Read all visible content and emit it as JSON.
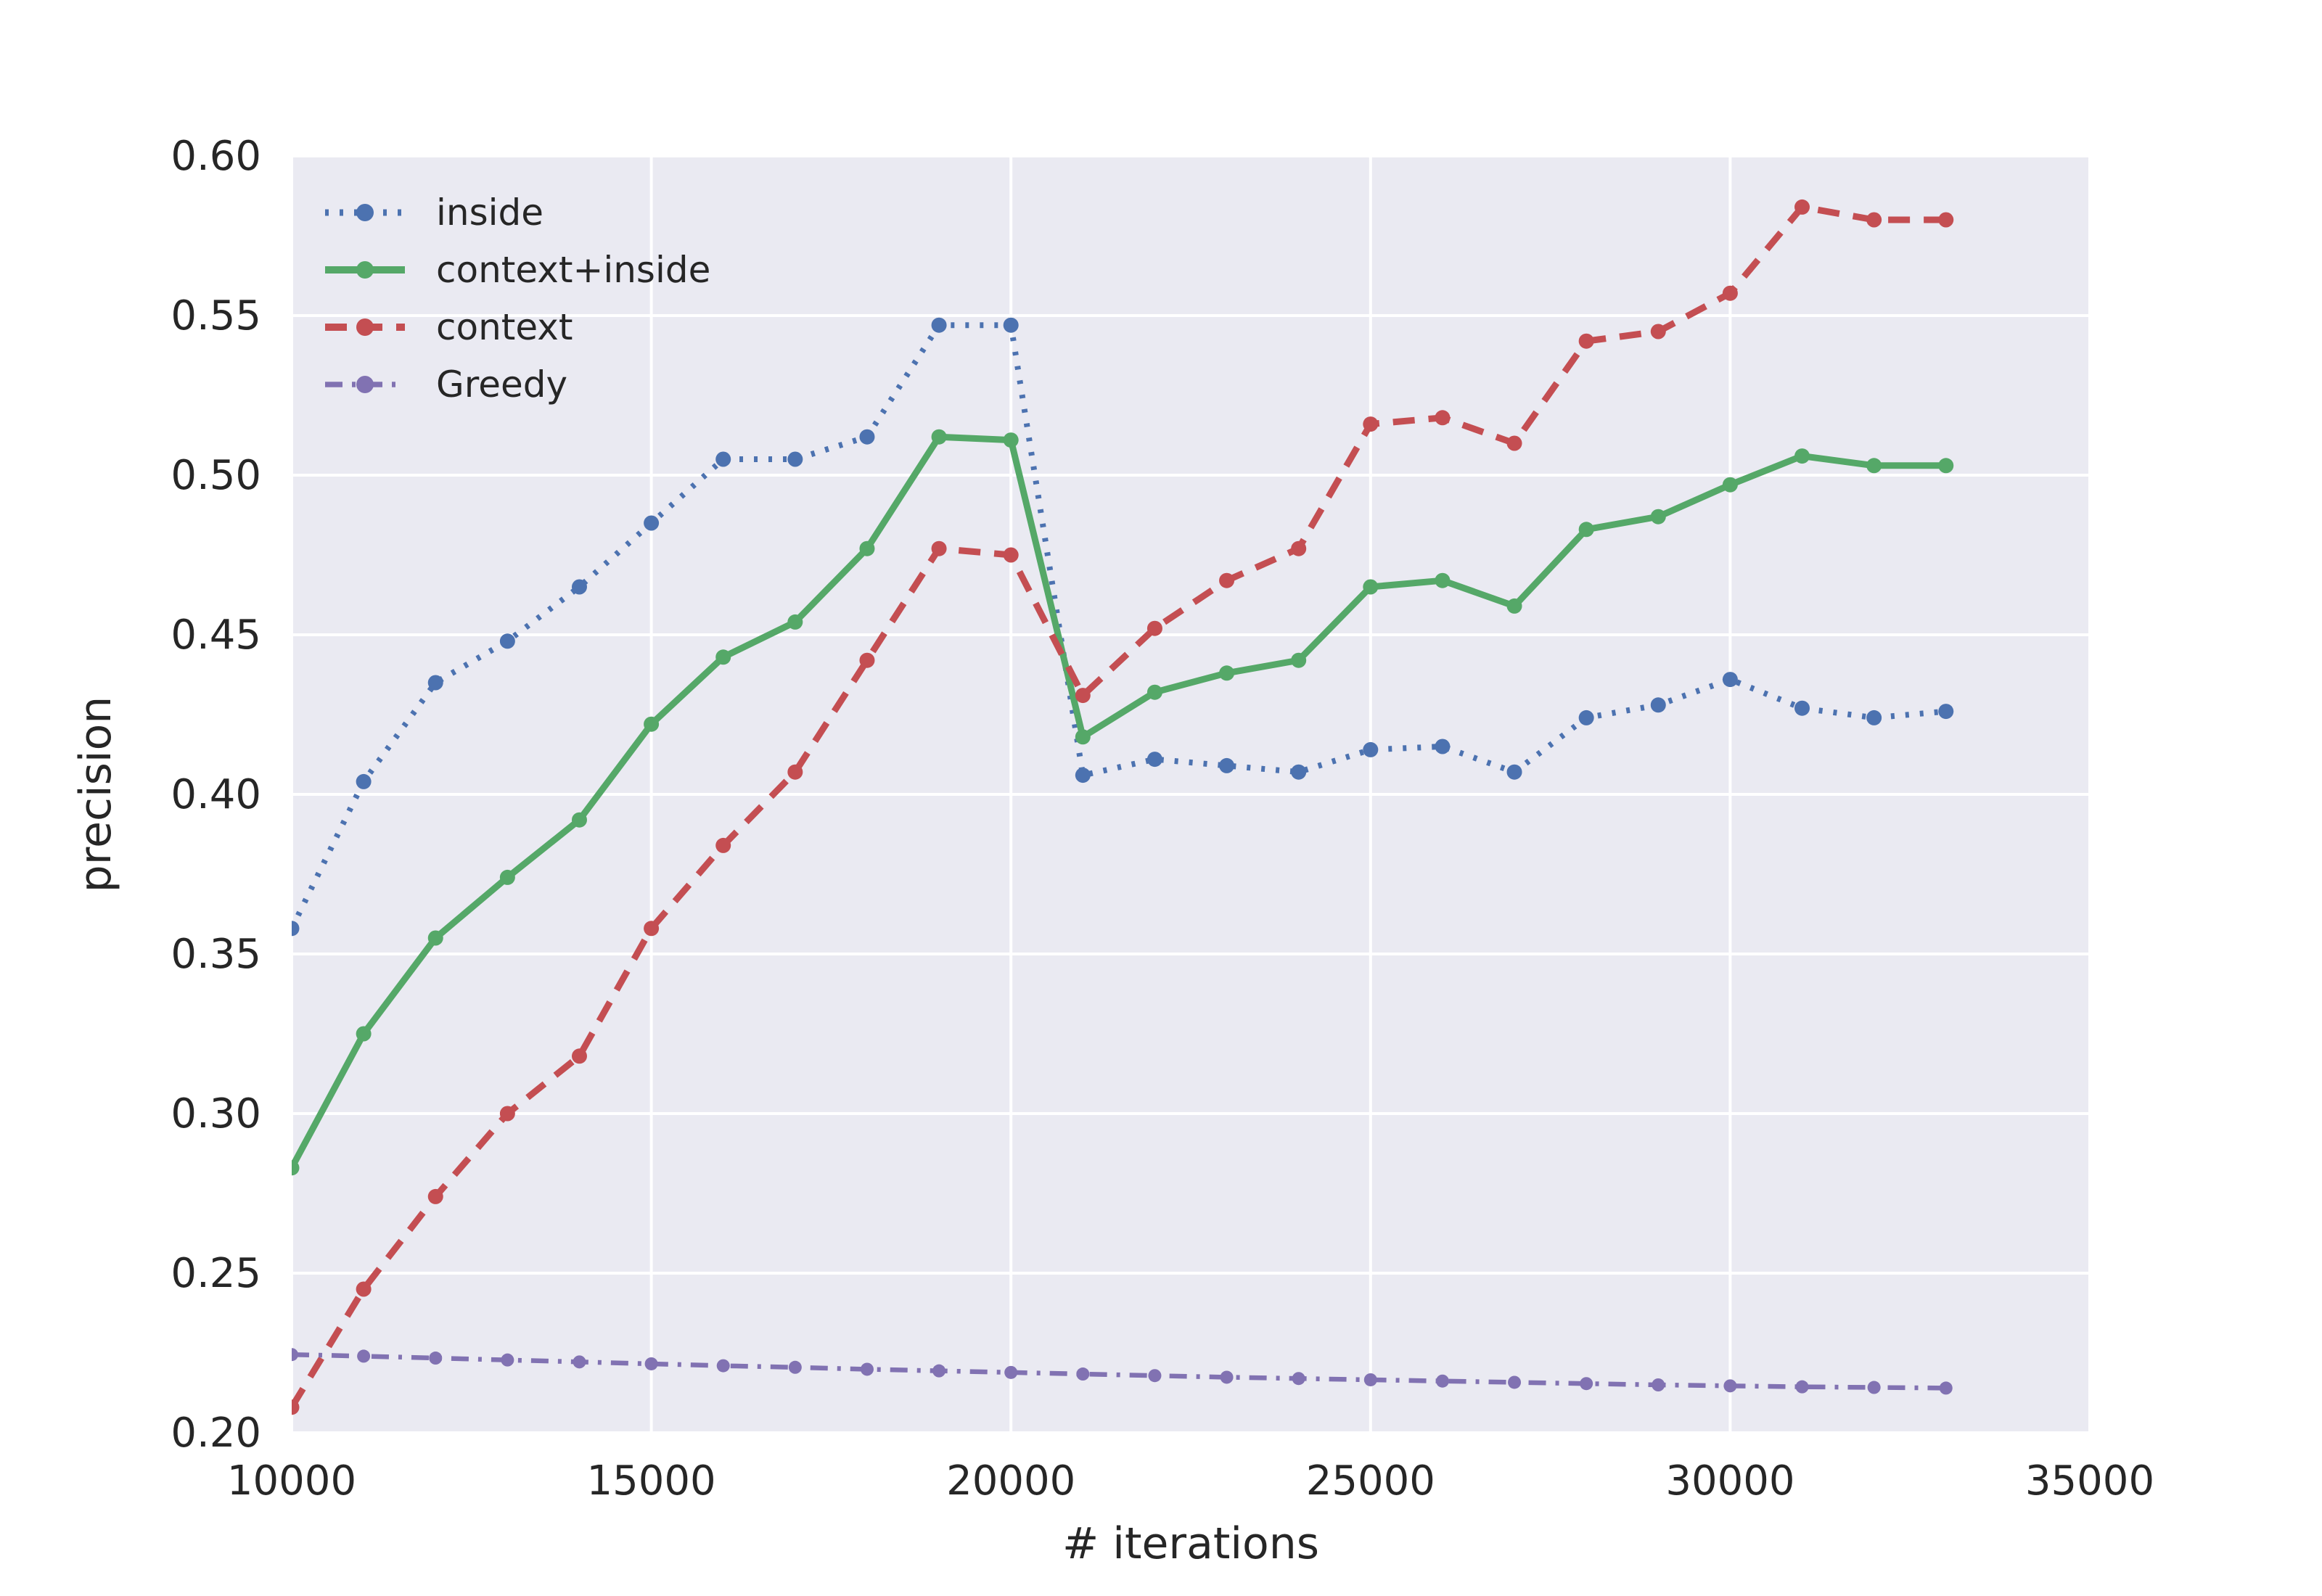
{
  "figure": {
    "background": "#ffffff",
    "plot_background": "#eaeaf2",
    "grid_color": "#ffffff",
    "text_color": "#262626"
  },
  "chart_data": {
    "type": "line",
    "title": "",
    "xlabel": "# iterations",
    "ylabel": "precision",
    "xlim": [
      10000,
      35000
    ],
    "ylim": [
      0.2,
      0.6
    ],
    "grid": true,
    "legend_position": "upper-left",
    "x_ticks": [
      10000,
      15000,
      20000,
      25000,
      30000,
      35000
    ],
    "x_tick_labels": [
      "10000",
      "15000",
      "20000",
      "25000",
      "30000",
      "35000"
    ],
    "y_ticks": [
      0.2,
      0.25,
      0.3,
      0.35,
      0.4,
      0.45,
      0.5,
      0.55,
      0.6
    ],
    "y_tick_labels": [
      "0.20",
      "0.25",
      "0.30",
      "0.35",
      "0.40",
      "0.45",
      "0.50",
      "0.55",
      "0.60"
    ],
    "x": [
      10000,
      11000,
      12000,
      13000,
      14000,
      15000,
      16000,
      17000,
      18000,
      19000,
      20000,
      21000,
      22000,
      23000,
      24000,
      25000,
      26000,
      27000,
      28000,
      29000,
      30000,
      31000,
      32000,
      33000
    ],
    "series": [
      {
        "name": "inside",
        "color": "#4c72b0",
        "linestyle": "dotted",
        "marker": "circle",
        "values": [
          0.358,
          0.404,
          0.435,
          0.448,
          0.465,
          0.485,
          0.505,
          0.505,
          0.512,
          0.547,
          0.547,
          0.406,
          0.411,
          0.409,
          0.407,
          0.414,
          0.415,
          0.407,
          0.424,
          0.428,
          0.436,
          0.427,
          0.424,
          0.426
        ]
      },
      {
        "name": "context+inside",
        "color": "#55a868",
        "linestyle": "solid",
        "marker": "circle",
        "values": [
          0.283,
          0.325,
          0.355,
          0.374,
          0.392,
          0.422,
          0.443,
          0.454,
          0.477,
          0.512,
          0.511,
          0.418,
          0.432,
          0.438,
          0.442,
          0.465,
          0.467,
          0.459,
          0.483,
          0.487,
          0.497,
          0.506,
          0.503,
          0.503
        ]
      },
      {
        "name": "context",
        "color": "#c44e52",
        "linestyle": "dashed",
        "marker": "circle",
        "values": [
          0.208,
          0.245,
          0.274,
          0.3,
          0.318,
          0.358,
          0.384,
          0.407,
          0.442,
          0.477,
          0.475,
          0.431,
          0.452,
          0.467,
          0.477,
          0.516,
          0.518,
          0.51,
          0.542,
          0.545,
          0.557,
          0.584,
          0.58,
          0.58
        ]
      },
      {
        "name": "Greedy",
        "color": "#8172b2",
        "linestyle": "dashdot",
        "marker": "circle",
        "values": [
          0.2245,
          0.224,
          0.2234,
          0.2228,
          0.2222,
          0.2216,
          0.221,
          0.2205,
          0.2199,
          0.2194,
          0.2189,
          0.2184,
          0.2179,
          0.2174,
          0.217,
          0.2166,
          0.2162,
          0.2158,
          0.2154,
          0.215,
          0.2147,
          0.2144,
          0.2142,
          0.214
        ]
      }
    ]
  }
}
